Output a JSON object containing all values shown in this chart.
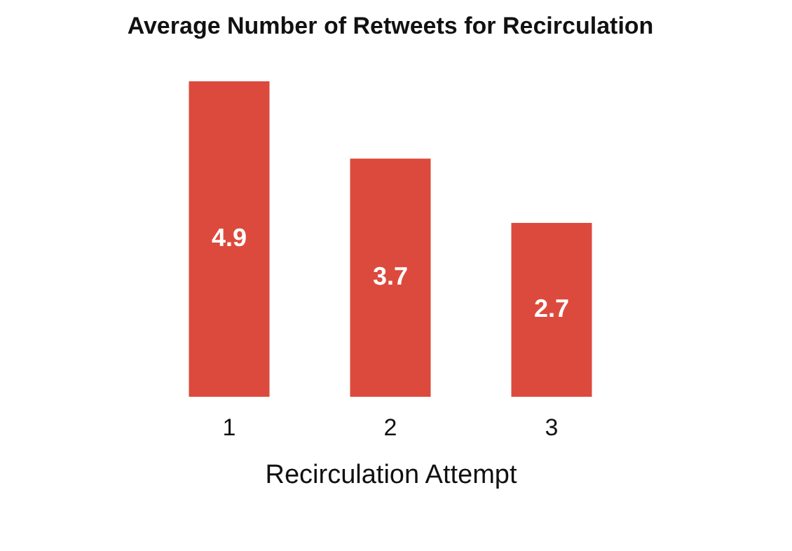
{
  "chart_data": {
    "type": "bar",
    "title": "Average Number of Retweets for Recirculation",
    "xlabel": "Recirculation Attempt",
    "categories": [
      "1",
      "2",
      "3"
    ],
    "values": [
      4.9,
      3.7,
      2.7
    ],
    "color": "#dc4a3d",
    "data_labels": true
  }
}
